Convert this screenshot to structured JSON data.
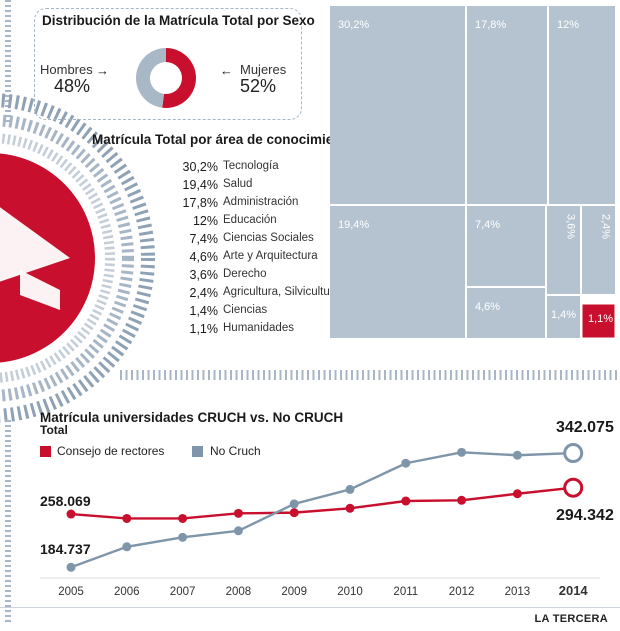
{
  "colors": {
    "accent": "#c8102e",
    "slate": "#7f95aa",
    "treemap_fill": "#b5c3d0",
    "decor": "#a7b6c6"
  },
  "sex": {
    "title": "Distribución de la Matrícula Total por Sexo",
    "male_label": "Hombres",
    "male_value": "48%",
    "female_label": "Mujeres",
    "female_value": "52%",
    "male_share": 48,
    "female_share": 52
  },
  "areas": {
    "title": "Matrícula Total por área de conocimiento",
    "items": [
      {
        "pct": "30,2%",
        "label": "Tecnología"
      },
      {
        "pct": "19,4%",
        "label": "Salud"
      },
      {
        "pct": "17,8%",
        "label": "Administración"
      },
      {
        "pct": "12%",
        "label": "Educación"
      },
      {
        "pct": "7,4%",
        "label": "Ciencias Sociales"
      },
      {
        "pct": "4,6%",
        "label": "Arte y Arquitectura"
      },
      {
        "pct": "3,6%",
        "label": "Derecho"
      },
      {
        "pct": "2,4%",
        "label": "Agricultura, Silvicultura"
      },
      {
        "pct": "1,4%",
        "label": "Ciencias"
      },
      {
        "pct": "1,1%",
        "label": "Humanidades"
      }
    ]
  },
  "crush": {
    "title": "Matrícula universidades CRUCH vs. No CRUCH",
    "subtitle": "Total",
    "legend_cruch": "Consejo de rectores",
    "legend_nocruch": "No Cruch",
    "label_nocruch_last": "342.075",
    "label_cruch_last": "294.342",
    "label_cruch_first": "258.069",
    "label_nocruch_first": "184.737"
  },
  "chart_data": [
    {
      "type": "pie",
      "title": "Distribución de la Matrícula Total por Sexo",
      "categories": [
        "Hombres",
        "Mujeres"
      ],
      "values": [
        48,
        52
      ],
      "unit": "%"
    },
    {
      "type": "heatmap",
      "title": "Matrícula Total por área de conocimiento",
      "categories": [
        "Tecnología",
        "Salud",
        "Administración",
        "Educación",
        "Ciencias Sociales",
        "Arte y Arquitectura",
        "Derecho",
        "Agricultura, Silvicultura",
        "Ciencias",
        "Humanidades"
      ],
      "values": [
        30.2,
        19.4,
        17.8,
        12,
        7.4,
        4.6,
        3.6,
        2.4,
        1.4,
        1.1
      ],
      "labels": [
        "30,2%",
        "19,4%",
        "17,8%",
        "12%",
        "7,4%",
        "4,6%",
        "3,6%",
        "2,4%",
        "1,4%",
        "1,1%"
      ],
      "unit": "%"
    },
    {
      "type": "line",
      "title": "Matrícula universidades CRUCH vs. No CRUCH",
      "subtitle": "Total",
      "x": [
        "2005",
        "2006",
        "2007",
        "2008",
        "2009",
        "2010",
        "2011",
        "2012",
        "2013",
        "2014"
      ],
      "series": [
        {
          "name": "Consejo de rectores",
          "values": [
            258069,
            252000,
            252000,
            259000,
            260000,
            266000,
            276000,
            277000,
            286000,
            294342
          ]
        },
        {
          "name": "No Cruch",
          "values": [
            184737,
            213000,
            226000,
            235000,
            272000,
            292000,
            328000,
            343000,
            339000,
            342075
          ]
        }
      ],
      "ylim": [
        170000,
        360000
      ],
      "grid": false
    }
  ]
}
